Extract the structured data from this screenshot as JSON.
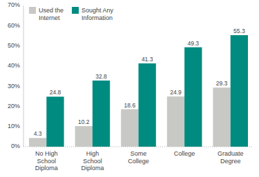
{
  "chart_data": {
    "type": "bar",
    "categories": [
      "No High\nSchool\nDiploma",
      "High\nSchool\nDiploma",
      "Some\nCollege",
      "College",
      "Graduate\nDegree"
    ],
    "series": [
      {
        "name": "Used the\nInternet",
        "color": "#c8c8c5",
        "values": [
          4.3,
          10.2,
          18.6,
          24.9,
          29.3
        ]
      },
      {
        "name": "Sought Any\nInformation",
        "color": "#008b80",
        "values": [
          24.8,
          32.8,
          41.3,
          49.3,
          55.3
        ]
      }
    ],
    "ylim": [
      0,
      70
    ],
    "yticks": [
      {
        "value": 0,
        "label": "0%"
      },
      {
        "value": 10,
        "label": "10%"
      },
      {
        "value": 20,
        "label": "20%"
      },
      {
        "value": 30,
        "label": "30%"
      },
      {
        "value": 40,
        "label": "40%"
      },
      {
        "value": 50,
        "label": "50%"
      },
      {
        "value": 60,
        "label": "60%"
      },
      {
        "value": 70,
        "label": "70%"
      }
    ],
    "data_labels": true,
    "grid": false,
    "legend": "upper left"
  }
}
